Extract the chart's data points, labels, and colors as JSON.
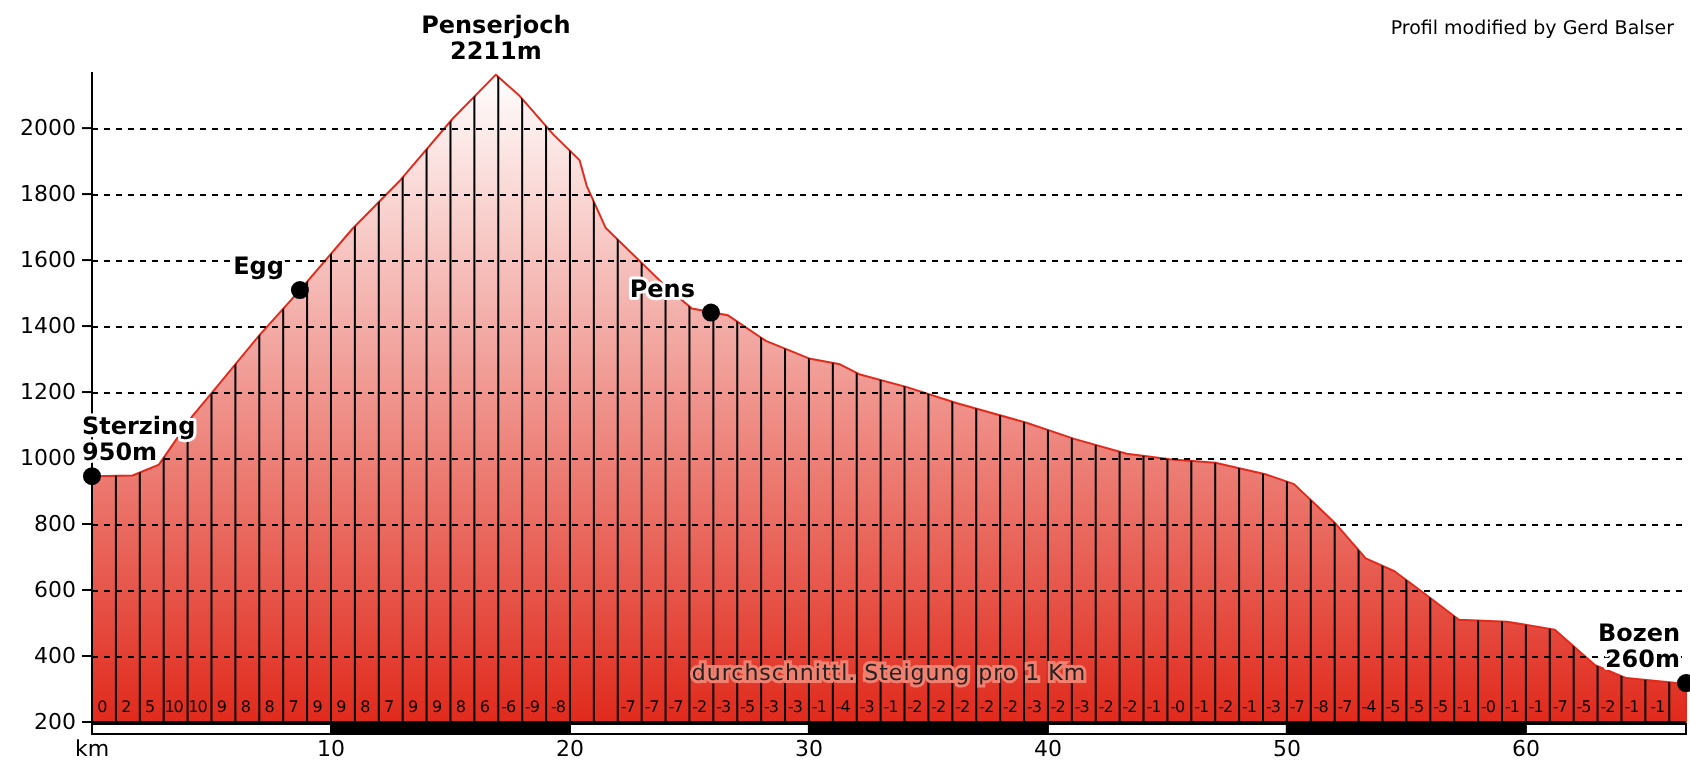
{
  "chart_data": {
    "type": "area",
    "xlim": [
      0,
      66.7
    ],
    "ylim": [
      200,
      2170
    ],
    "xticks": [
      {
        "value": 0,
        "label": "km"
      },
      {
        "value": 1,
        "label": null
      },
      {
        "value": 2,
        "label": null
      },
      {
        "value": 3,
        "label": null
      },
      {
        "value": 4,
        "label": null
      },
      {
        "value": 5,
        "label": null
      },
      {
        "value": 6,
        "label": null
      },
      {
        "value": 7,
        "label": null
      },
      {
        "value": 8,
        "label": null
      },
      {
        "value": 9,
        "label": null
      },
      10,
      {
        "value": 11,
        "label": null
      },
      {
        "value": 12,
        "label": null
      },
      {
        "value": 13,
        "label": null
      },
      {
        "value": 14,
        "label": null
      },
      {
        "value": 15,
        "label": null
      },
      {
        "value": 16,
        "label": null
      },
      {
        "value": 17,
        "label": null
      },
      {
        "value": 18,
        "label": null
      },
      {
        "value": 19,
        "label": null
      },
      20,
      {
        "value": 21,
        "label": null
      },
      {
        "value": 22,
        "label": null
      },
      {
        "value": 23,
        "label": null
      },
      {
        "value": 24,
        "label": null
      },
      {
        "value": 25,
        "label": null
      },
      {
        "value": 26,
        "label": null
      },
      {
        "value": 27,
        "label": null
      },
      {
        "value": 28,
        "label": null
      },
      {
        "value": 29,
        "label": null
      },
      30,
      {
        "value": 31,
        "label": null
      },
      {
        "value": 32,
        "label": null
      },
      {
        "value": 33,
        "label": null
      },
      {
        "value": 34,
        "label": null
      },
      {
        "value": 35,
        "label": null
      },
      {
        "value": 36,
        "label": null
      },
      {
        "value": 37,
        "label": null
      },
      {
        "value": 38,
        "label": null
      },
      {
        "value": 39,
        "label": null
      },
      40,
      {
        "value": 41,
        "label": null
      },
      {
        "value": 42,
        "label": null
      },
      {
        "value": 43,
        "label": null
      },
      {
        "value": 44,
        "label": null
      },
      {
        "value": 45,
        "label": null
      },
      {
        "value": 46,
        "label": null
      },
      {
        "value": 47,
        "label": null
      },
      {
        "value": 48,
        "label": null
      },
      {
        "value": 49,
        "label": null
      },
      50,
      {
        "value": 51,
        "label": null
      },
      {
        "value": 52,
        "label": null
      },
      {
        "value": 53,
        "label": null
      },
      {
        "value": 54,
        "label": null
      },
      {
        "value": 55,
        "label": null
      },
      {
        "value": 56,
        "label": null
      },
      {
        "value": 57,
        "label": null
      },
      {
        "value": 58,
        "label": null
      },
      {
        "value": 59,
        "label": null
      },
      60,
      {
        "value": 61,
        "label": null
      },
      {
        "value": 62,
        "label": null
      },
      {
        "value": 63,
        "label": null
      },
      {
        "value": 64,
        "label": null
      },
      {
        "value": 65,
        "label": null
      },
      {
        "value": 66,
        "label": null
      }
    ],
    "yticks": [
      200,
      400,
      600,
      800,
      1000,
      1200,
      1400,
      1600,
      1800,
      2000
    ],
    "grid": true,
    "series": [
      {
        "type": "area",
        "color": "#e02a1c",
        "x": [
          0,
          1.7,
          2.8,
          4.2,
          5.1,
          7.0,
          8.7,
          10.9,
          12.9,
          15.1,
          16.9,
          17.9,
          19.3,
          20.4,
          20.7,
          21.5,
          24.0,
          25.1,
          26.6,
          28.2,
          30.0,
          31.3,
          32.1,
          34.1,
          36.2,
          39.1,
          41.1,
          43.3,
          45.1,
          47.0,
          49.1,
          50.3,
          52.0,
          53.3,
          54.5,
          55.6,
          57.2,
          59.2,
          61.2,
          62.9,
          64.2,
          66.2,
          66.7
        ],
        "values": [
          945,
          947,
          980,
          1127,
          1205,
          1372,
          1509,
          1695,
          1842,
          2029,
          2162,
          2097,
          1981,
          1903,
          1825,
          1697,
          1521,
          1453,
          1433,
          1355,
          1302,
          1284,
          1254,
          1215,
          1166,
          1107,
          1058,
          1013,
          996,
          986,
          951,
          921,
          804,
          696,
          657,
          598,
          510,
          504,
          480,
          372,
          333,
          319,
          318
        ]
      },
      {
        "type": "scatter",
        "color": "#000000",
        "marker": "circle",
        "x": [
          0,
          8.7,
          25.9,
          66.7
        ],
        "values": [
          945,
          1509,
          1441,
          318
        ]
      }
    ],
    "annotations": [
      "durchschnittl. Steigung pro 1 Km",
      "Profil modified by Gerd Balser",
      {
        "text": "Sterzing\n950m",
        "x": 0,
        "y": 945
      },
      {
        "text": "Egg",
        "x": 8.7,
        "y": 1509
      },
      {
        "text": "Penserjoch\n2211m",
        "x": 16.9,
        "y": 2162
      },
      {
        "text": "Pens",
        "x": 25.9,
        "y": 1441
      },
      {
        "text": "Bozen\n260m",
        "x": 66.7,
        "y": 318
      },
      "0 2 5 10 10 9 8 8 7 9 9 8 7 9 9 8 6 -6 -9 -8",
      "-7 -7 -7 -2 -3 -5 -3 -3 -1 -4 -3 -1 -2 -2 -2 -2 -2 -3 -2 -3 -2 -2 -1 -0 -1 -2 -1 -3 -7 -8 -7 -4 -5 -5 -5 -1 -0 -1 -1 -7 -5 -2 -1 -1"
    ]
  }
}
